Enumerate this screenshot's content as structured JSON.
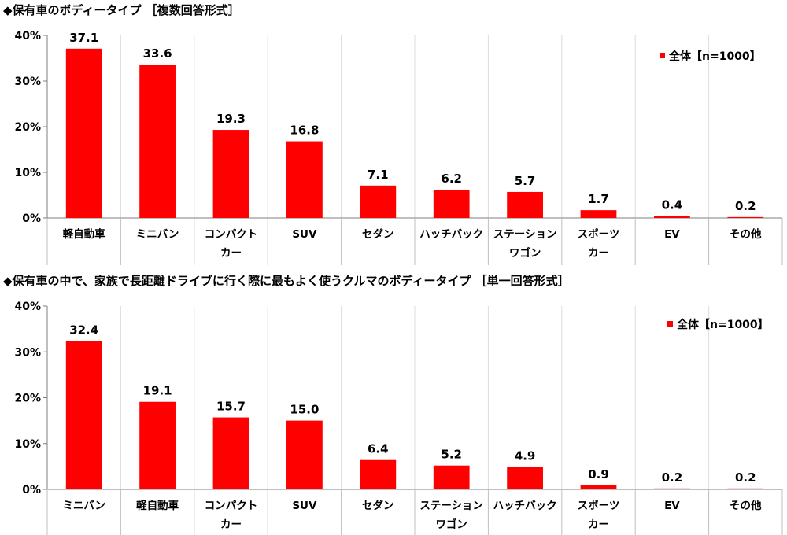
{
  "chart_data": [
    {
      "type": "bar",
      "title": "◆保有車のボディータイプ ［複数回答形式］",
      "categories": [
        [
          "軽自動車"
        ],
        [
          "ミニバン"
        ],
        [
          "コンパクト",
          "カー"
        ],
        [
          "SUV"
        ],
        [
          "セダン"
        ],
        [
          "ハッチバック"
        ],
        [
          "ステーション",
          "ワゴン"
        ],
        [
          "スポーツ",
          "カー"
        ],
        [
          "EV"
        ],
        [
          "その他"
        ]
      ],
      "series": [
        {
          "name": "全体【n=1000】",
          "values": [
            37.1,
            33.6,
            19.3,
            16.8,
            7.1,
            6.2,
            5.7,
            1.7,
            0.4,
            0.2
          ]
        }
      ],
      "ylim": [
        0,
        40
      ],
      "yticks": [
        "0%",
        "10%",
        "20%",
        "30%",
        "40%"
      ],
      "legend": "top-right",
      "color": "#ff0000"
    },
    {
      "type": "bar",
      "title": "◆保有車の中で、家族で長距離ドライブに行く際に最もよく使うクルマのボディータイプ ［単一回答形式］",
      "categories": [
        [
          "ミニバン"
        ],
        [
          "軽自動車"
        ],
        [
          "コンパクト",
          "カー"
        ],
        [
          "SUV"
        ],
        [
          "セダン"
        ],
        [
          "ステーション",
          "ワゴン"
        ],
        [
          "ハッチバック"
        ],
        [
          "スポーツ",
          "カー"
        ],
        [
          "EV"
        ],
        [
          "その他"
        ]
      ],
      "series": [
        {
          "name": "全体【n=1000】",
          "values": [
            32.4,
            19.1,
            15.7,
            15.0,
            6.4,
            5.2,
            4.9,
            0.9,
            0.2,
            0.2
          ]
        }
      ],
      "ylim": [
        0,
        40
      ],
      "yticks": [
        "0%",
        "10%",
        "20%",
        "30%",
        "40%"
      ],
      "legend": "top-right",
      "color": "#ff0000"
    }
  ]
}
